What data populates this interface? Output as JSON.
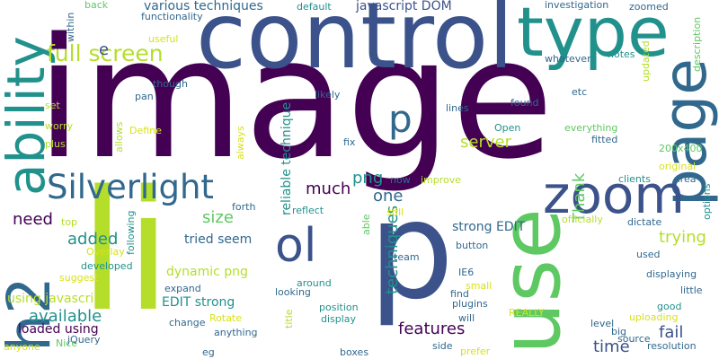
{
  "colors": {
    "background": "#ffffff",
    "dark_purple": "#440154",
    "indigo": "#3b528b",
    "blue": "#31688e",
    "teal": "#21918c",
    "green": "#5ec962",
    "lime": "#b5de2b",
    "yellow": "#d7e219"
  },
  "words": [
    "image",
    "control",
    "li",
    "p",
    "type",
    "page",
    "use",
    "zoom",
    "ability",
    "h2",
    "Silverlight",
    "ol",
    "full screen",
    "e",
    "p",
    "much",
    "png",
    "one",
    "server",
    "techniques",
    "Thank",
    "trying",
    "fail",
    "features",
    "time",
    "available",
    "need",
    "added",
    "size",
    "tried seem",
    "dynamic png",
    "loaded using",
    "using javascript",
    "EDIT strong",
    "strong EDIT",
    "reliable technique",
    "various techniques",
    "javascript DOM",
    "investigation",
    "zoomed",
    "description",
    "updated",
    "options",
    "200x400",
    "original",
    "area",
    "fitted",
    "everything",
    "etc",
    "found",
    "lines",
    "Open",
    "notes",
    "whatever",
    "functionality",
    "back",
    "default",
    "within",
    "useful",
    "though",
    "pan",
    "likely",
    "fix",
    "set",
    "worry",
    "plus",
    "Define",
    "allows",
    "always",
    "improve",
    "clients",
    "officially",
    "dictate",
    "still",
    "able",
    "reflect",
    "forth",
    "top",
    "following",
    "Overlay",
    "suggest",
    "developed",
    "jQuery",
    "Nice",
    "anyone",
    "change",
    "Rotate",
    "anything",
    "eg",
    "expand",
    "looking",
    "around",
    "position",
    "display",
    "title",
    "boxes",
    "plugins",
    "IE6",
    "small",
    "find",
    "will",
    "prefer",
    "side",
    "REALLY",
    "button",
    "team",
    "now",
    "used",
    "displaying",
    "little",
    "good",
    "level",
    "big",
    "source",
    "uploading",
    "resolution"
  ]
}
